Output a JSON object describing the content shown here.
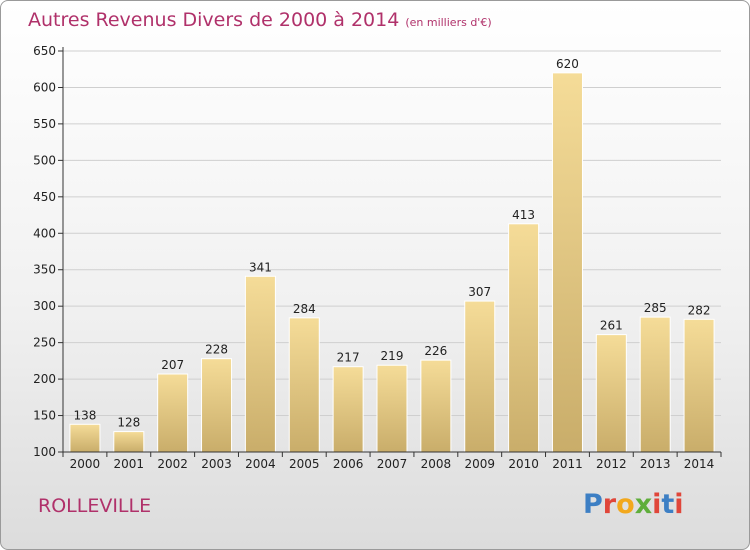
{
  "header": {
    "title": "Autres Revenus Divers de 2000 à 2014",
    "subtitle": "(en milliers d'€)"
  },
  "footer": {
    "commune": "ROLLEVILLE",
    "logo_text": "Proxiti",
    "logo_colors": [
      "#3d7fc4",
      "#e0463a",
      "#f2a81d",
      "#5fae3b",
      "#e0463a",
      "#3d7fc4",
      "#e0463a"
    ]
  },
  "colors": {
    "bar_top": "#f5dc98",
    "bar_bottom": "#c9ad6a",
    "axis": "#333333",
    "grid": "#cfcfcf",
    "title": "#b0316a"
  },
  "chart_data": {
    "type": "bar",
    "title": "Autres Revenus Divers de 2000 à 2014",
    "subtitle": "(en milliers d'€)",
    "xlabel": "",
    "ylabel": "",
    "categories": [
      "2000",
      "2001",
      "2002",
      "2003",
      "2004",
      "2005",
      "2006",
      "2007",
      "2008",
      "2009",
      "2010",
      "2011",
      "2012",
      "2013",
      "2014"
    ],
    "values": [
      138,
      128,
      207,
      228,
      341,
      284,
      217,
      219,
      226,
      307,
      413,
      620,
      261,
      285,
      282
    ],
    "ylim": [
      100,
      650
    ],
    "yticks": [
      100,
      150,
      200,
      250,
      300,
      350,
      400,
      450,
      500,
      550,
      600,
      650
    ],
    "grid": true,
    "data_labels": true
  }
}
